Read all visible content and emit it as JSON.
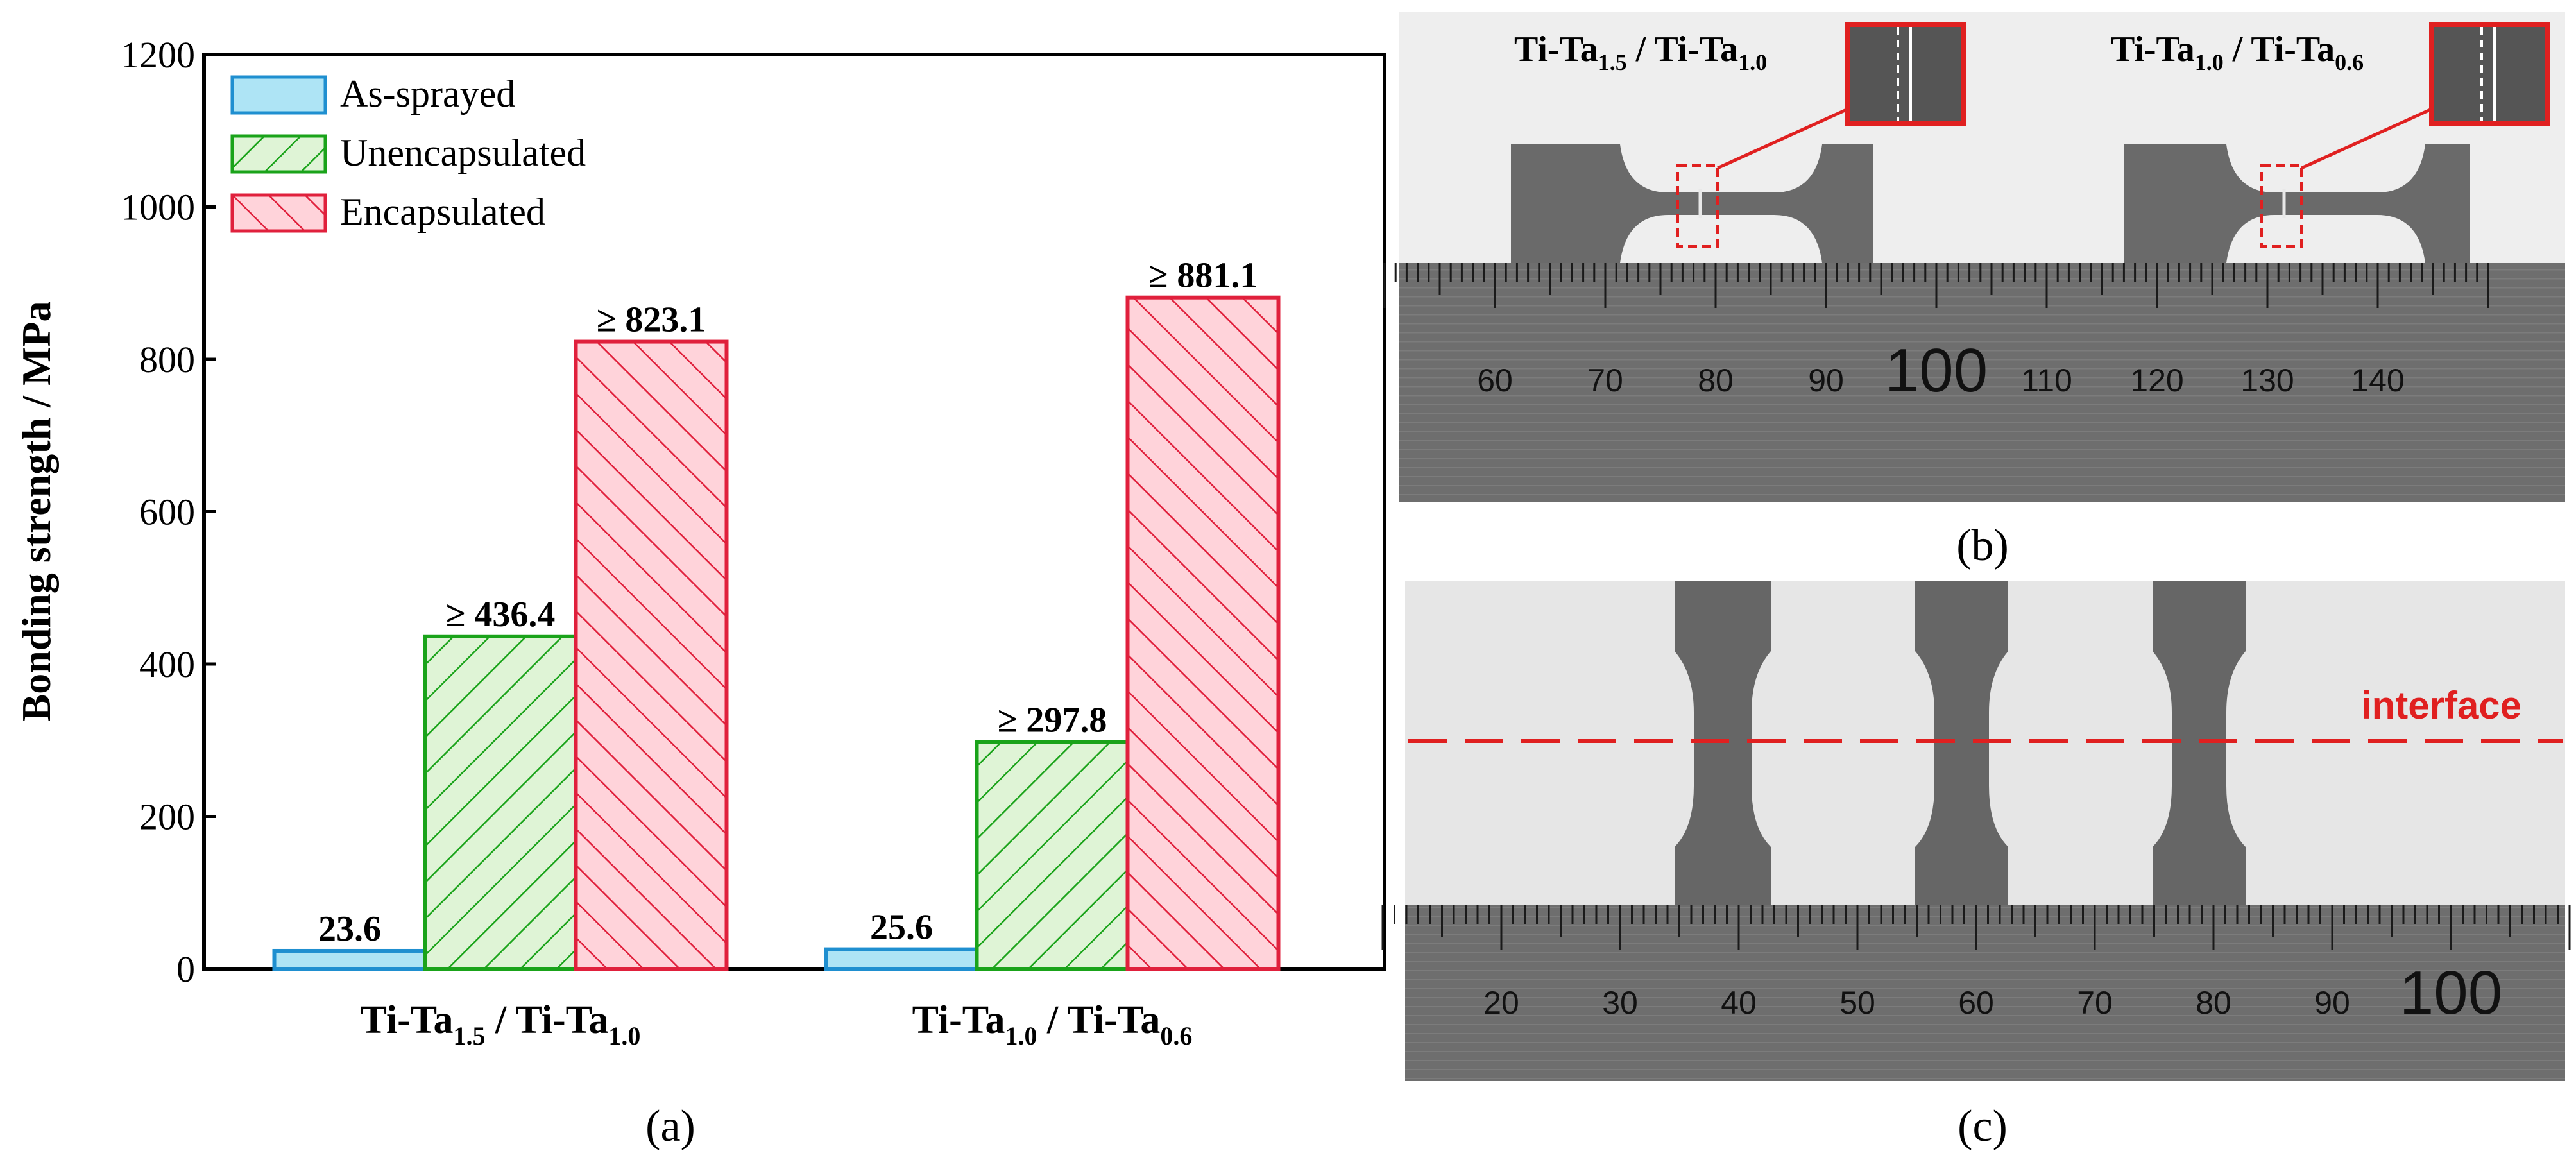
{
  "chart_data": {
    "type": "bar",
    "categories": [
      {
        "base": "Ti-Ta",
        "sub1": "1.5",
        "mid": " / Ti-Ta",
        "sub2": "1.0"
      },
      {
        "base": "Ti-Ta",
        "sub1": "1.0",
        "mid": " / Ti-Ta",
        "sub2": "0.6"
      }
    ],
    "series": [
      {
        "name": "As-sprayed",
        "values": [
          23.6,
          25.6
        ],
        "labels": [
          "23.6",
          "25.6"
        ],
        "fill": "#aee4f5",
        "stroke": "#1f8fd0",
        "pattern": "none"
      },
      {
        "name": "Unencapsulated",
        "values": [
          436.4,
          297.8
        ],
        "labels": [
          "≥ 436.4",
          "≥ 297.8"
        ],
        "fill": "#dff4d6",
        "stroke": "#1aa31a",
        "pattern": "hatch-right"
      },
      {
        "name": "Encapsulated",
        "values": [
          823.1,
          881.1
        ],
        "labels": [
          "≥ 823.1",
          "≥ 881.1"
        ],
        "fill": "#ffd3da",
        "stroke": "#e0203c",
        "pattern": "hatch-left"
      }
    ],
    "ylabel": "Bonding strength / MPa",
    "ylim": [
      0,
      1200
    ],
    "yticks": [
      0,
      200,
      400,
      600,
      800,
      1000,
      1200
    ],
    "legend_position": "top-left",
    "grid": false
  },
  "panels": {
    "a": "(a)",
    "b": "(b)",
    "c": "(c)"
  },
  "photo_b": {
    "label_left": {
      "base": "Ti-Ta",
      "sub1": "1.5",
      "mid": " / Ti-Ta",
      "sub2": "1.0"
    },
    "label_right": {
      "base": "Ti-Ta",
      "sub1": "1.0",
      "mid": " / Ti-Ta",
      "sub2": "0.6"
    },
    "ruler_numbers": [
      "60",
      "70",
      "80",
      "90",
      "100",
      "110",
      "120",
      "130",
      "140"
    ]
  },
  "photo_c": {
    "annotation": "interface",
    "ruler_numbers": [
      "20",
      "30",
      "40",
      "50",
      "60",
      "70",
      "80",
      "90",
      "100"
    ]
  },
  "colors": {
    "annotation": "#e02020",
    "ruler": "#5a5a5a",
    "specimen": "#6a6a6a"
  }
}
